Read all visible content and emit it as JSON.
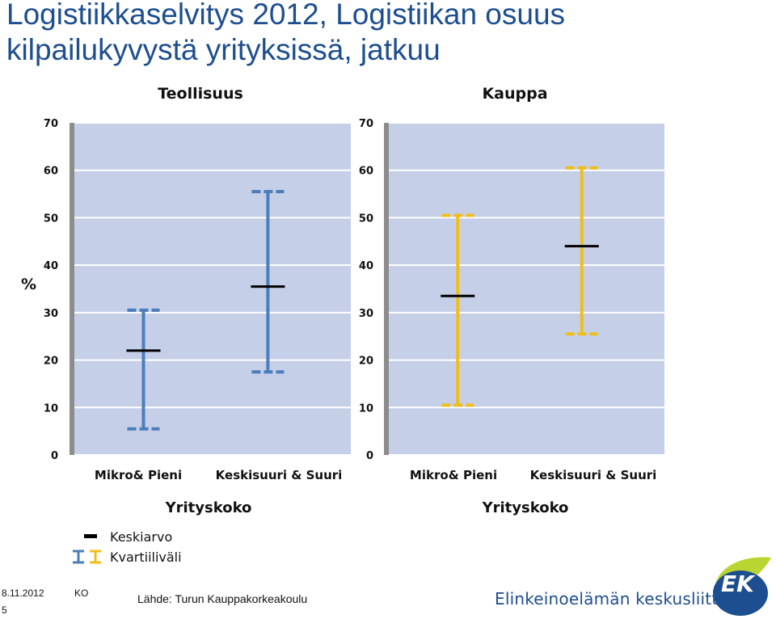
{
  "slide": {
    "title_line1": "Logistiikkaselvitys 2012, Logistiikan osuus",
    "title_line2": "kilpailukyvystä yrityksissä, jatkuu"
  },
  "colors": {
    "plot_bg": "#c5cfe8",
    "blue": "#4a7ebb",
    "yellow": "#f0be1c",
    "mean": "#000000",
    "title": "#1d4e8f",
    "logo_green": "#b9d531",
    "logo_blue": "#1d4e8f"
  },
  "chart_data": [
    {
      "type": "error_bar",
      "title": "Teollisuus",
      "xlabel": "Yrityskoko",
      "ylabel": "%",
      "ylim": [
        0,
        70
      ],
      "yticks": [
        "0",
        "10",
        "20",
        "30",
        "40",
        "50",
        "60",
        "70"
      ],
      "grid": true,
      "color": "#4a7ebb",
      "categories": [
        "Mikro& Pieni",
        "Keskisuuri & Suuri"
      ],
      "mean": [
        22,
        35.5
      ],
      "q1": [
        5.5,
        17.5
      ],
      "q3": [
        30.5,
        55.5
      ]
    },
    {
      "type": "error_bar",
      "title": "Kauppa",
      "xlabel": "Yrityskoko",
      "ylabel": "",
      "ylim": [
        0,
        70
      ],
      "yticks": [
        "0",
        "10",
        "20",
        "30",
        "40",
        "50",
        "60",
        "70"
      ],
      "grid": true,
      "color": "#f0be1c",
      "categories": [
        "Mikro& Pieni",
        "Keskisuuri & Suuri"
      ],
      "mean": [
        33.5,
        44
      ],
      "q1": [
        10.5,
        25.5
      ],
      "q3": [
        50.5,
        60.5
      ]
    }
  ],
  "legend": {
    "mean_label": "Keskiarvo",
    "range_label": "Kvartiiliväli"
  },
  "footer": {
    "date": "8.11.2012",
    "author": "KO",
    "page": "5",
    "source": "Lähde: Turun Kauppakorkeakoulu",
    "org": "Elinkeinoelämän keskusliitto",
    "logo_text": "EK"
  }
}
